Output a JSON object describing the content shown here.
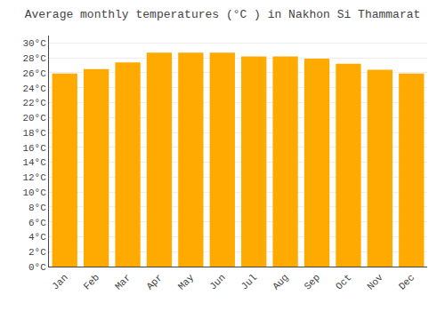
{
  "chart_data": {
    "type": "bar",
    "title": "Average monthly temperatures (°C ) in Nakhon Si Thammarat",
    "categories": [
      "Jan",
      "Feb",
      "Mar",
      "Apr",
      "May",
      "Jun",
      "Jul",
      "Aug",
      "Sep",
      "Oct",
      "Nov",
      "Dec"
    ],
    "values": [
      25.9,
      26.5,
      27.4,
      28.7,
      28.7,
      28.7,
      28.2,
      28.2,
      27.9,
      27.2,
      26.4,
      25.9
    ],
    "color": "#FFAA00",
    "ylim": [
      0,
      31
    ],
    "yticks": [
      {
        "value": 0,
        "label": "0°C"
      },
      {
        "value": 2,
        "label": "2°C"
      },
      {
        "value": 4,
        "label": "4°C"
      },
      {
        "value": 6,
        "label": "6°C"
      },
      {
        "value": 8,
        "label": "8°C"
      },
      {
        "value": 10,
        "label": "10°C"
      },
      {
        "value": 12,
        "label": "12°C"
      },
      {
        "value": 14,
        "label": "14°C"
      },
      {
        "value": 16,
        "label": "16°C"
      },
      {
        "value": 18,
        "label": "18°C"
      },
      {
        "value": 20,
        "label": "20°C"
      },
      {
        "value": 22,
        "label": "22°C"
      },
      {
        "value": 24,
        "label": "24°C"
      },
      {
        "value": 26,
        "label": "26°C"
      },
      {
        "value": 28,
        "label": "28°C"
      },
      {
        "value": 30,
        "label": "30°C"
      }
    ],
    "grid": true
  }
}
